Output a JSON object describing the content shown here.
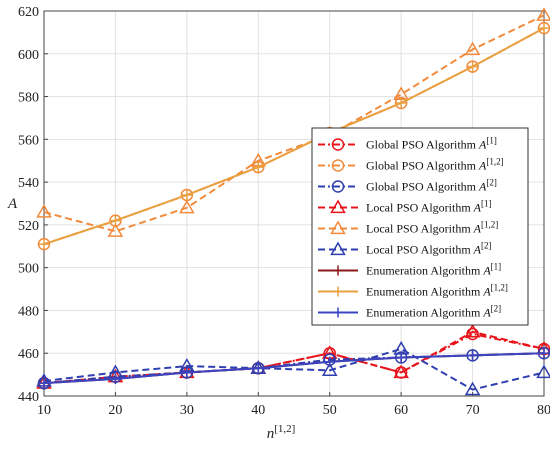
{
  "chart_data": {
    "type": "line",
    "xlabel": "n^{1,2}",
    "ylabel": "A",
    "xlim": [
      10,
      80
    ],
    "ylim": [
      440,
      620
    ],
    "x": [
      10,
      20,
      30,
      40,
      50,
      60,
      70,
      80
    ],
    "xticks": [
      "10",
      "20",
      "30",
      "40",
      "50",
      "60",
      "70",
      "80"
    ],
    "yticks": [
      "440",
      "460",
      "480",
      "500",
      "520",
      "540",
      "560",
      "580",
      "600",
      "620"
    ],
    "grid": true,
    "legend_position": "right",
    "series": [
      {
        "name": "Global PSO Algorithm A^{1}",
        "color": "#e8141b",
        "dash": "dashdot",
        "marker": "circle",
        "values": [
          446,
          449,
          451,
          453,
          460,
          451,
          469,
          462
        ]
      },
      {
        "name": "Global PSO Algorithm A^{1,2}",
        "color": "#f28a3c",
        "dash": "dashdot",
        "marker": "circle",
        "values": [
          511,
          522,
          534,
          547,
          563,
          577,
          594,
          612
        ]
      },
      {
        "name": "Global PSO Algorithm A^{2}",
        "color": "#2f3fb0",
        "dash": "dashdot",
        "marker": "circle",
        "values": [
          446,
          449,
          451,
          453,
          457,
          458,
          459,
          460
        ]
      },
      {
        "name": "Local PSO Algorithm A^{1}",
        "color": "#e8141b",
        "dash": "dashed",
        "marker": "triangle",
        "values": [
          446,
          449,
          451,
          453,
          460,
          451,
          470,
          462
        ]
      },
      {
        "name": "Local PSO Algorithm A^{1,2}",
        "color": "#f28a3c",
        "dash": "dashed",
        "marker": "triangle",
        "values": [
          526,
          517,
          528,
          550,
          562,
          581,
          602,
          618
        ]
      },
      {
        "name": "Local PSO Algorithm A^{2}",
        "color": "#2f3fb0",
        "dash": "dashed",
        "marker": "triangle",
        "values": [
          447,
          451,
          454,
          453,
          452,
          462,
          443,
          451
        ]
      },
      {
        "name": "Enumeration Algorithm A^{1}",
        "color": "#8b1a1a",
        "dash": "solid",
        "marker": "plus",
        "values": [
          446,
          448,
          451,
          453,
          456,
          458,
          459,
          460
        ]
      },
      {
        "name": "Enumeration Algorithm A^{1,2}",
        "color": "#e8a040",
        "dash": "solid",
        "marker": "plus",
        "values": [
          511,
          522,
          534,
          547,
          563,
          577,
          594,
          612
        ]
      },
      {
        "name": "Enumeration Algorithm A^{2}",
        "color": "#3a45c4",
        "dash": "solid",
        "marker": "plus",
        "values": [
          446,
          448,
          451,
          453,
          456,
          458,
          459,
          460
        ]
      }
    ],
    "legend": [
      {
        "prefix": "Global PSO Algorithm ",
        "sup": "[1]"
      },
      {
        "prefix": "Global PSO Algorithm ",
        "sup": "[1,2]"
      },
      {
        "prefix": "Global PSO Algorithm ",
        "sup": "[2]"
      },
      {
        "prefix": "Local PSO Algorithm ",
        "sup": "[1]"
      },
      {
        "prefix": "Local PSO Algorithm ",
        "sup": "[1,2]"
      },
      {
        "prefix": "Local PSO Algorithm ",
        "sup": "[2]"
      },
      {
        "prefix": "Enumeration Algorithm ",
        "sup": "[1]"
      },
      {
        "prefix": "Enumeration Algorithm ",
        "sup": "[1,2]"
      },
      {
        "prefix": "Enumeration Algorithm ",
        "sup": "[2]"
      }
    ],
    "xlabel_parts": {
      "base": "n",
      "sup": "[1,2]"
    },
    "ylabel_text": "A"
  }
}
